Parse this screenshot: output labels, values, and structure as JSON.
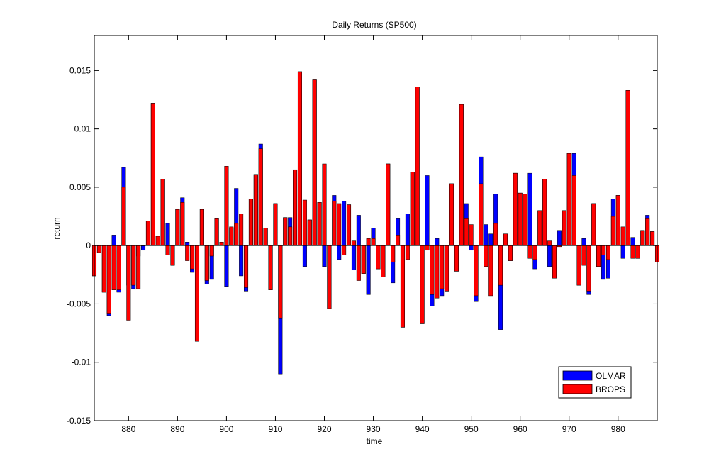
{
  "chart_data": {
    "type": "bar",
    "title": "Daily Returns (SP500)",
    "xlabel": "time",
    "ylabel": "return",
    "xlim": [
      873,
      988
    ],
    "ylim": [
      -0.015,
      0.018
    ],
    "xticks": [
      880,
      890,
      900,
      910,
      920,
      930,
      940,
      950,
      960,
      970,
      980
    ],
    "xtick_labels": [
      "880",
      "890",
      "900",
      "910",
      "920",
      "930",
      "940",
      "950",
      "960",
      "970",
      "980"
    ],
    "yticks": [
      -0.015,
      -0.01,
      -0.005,
      0,
      0.005,
      0.01,
      0.015
    ],
    "ytick_labels": [
      "-0.015",
      "-0.01",
      "-0.005",
      "0",
      "0.005",
      "0.01",
      "0.015"
    ],
    "grid": false,
    "legend_position": "lower-right",
    "x": [
      873,
      874,
      875,
      876,
      877,
      878,
      879,
      880,
      881,
      882,
      883,
      884,
      885,
      886,
      887,
      888,
      889,
      890,
      891,
      892,
      893,
      894,
      895,
      896,
      897,
      898,
      899,
      900,
      901,
      902,
      903,
      904,
      905,
      906,
      907,
      908,
      909,
      910,
      911,
      912,
      913,
      914,
      915,
      916,
      917,
      918,
      919,
      920,
      921,
      922,
      923,
      924,
      925,
      926,
      927,
      928,
      929,
      930,
      931,
      932,
      933,
      934,
      935,
      936,
      937,
      938,
      939,
      940,
      941,
      942,
      943,
      944,
      945,
      946,
      947,
      948,
      949,
      950,
      951,
      952,
      953,
      954,
      955,
      956,
      957,
      958,
      959,
      960,
      961,
      962,
      963,
      964,
      965,
      966,
      967,
      968,
      969,
      970,
      971,
      972,
      973,
      974,
      975,
      976,
      977,
      978,
      979,
      980,
      981,
      982,
      983,
      984,
      985,
      986,
      987,
      988
    ],
    "series": [
      {
        "name": "OLMAR",
        "color": "#0000ff",
        "values": [
          -0.0026,
          -0.0006,
          -0.004,
          -0.006,
          0.0009,
          -0.004,
          0.0067,
          -0.0034,
          -0.0037,
          -0.0009,
          -0.0004,
          0.0021,
          0.0122,
          0.0008,
          0.0057,
          0.0019,
          -0.0017,
          0.0031,
          0.0041,
          0.0003,
          -0.0023,
          -0.0082,
          0.0031,
          -0.0033,
          -0.0029,
          0.0023,
          0.0003,
          -0.0035,
          0.0015,
          0.0049,
          -0.0026,
          -0.0039,
          0.004,
          0.0061,
          0.0087,
          0.0015,
          -0.0038,
          0.0036,
          -0.011,
          0.0024,
          0.0024,
          0.0065,
          0.0149,
          -0.0018,
          0.0022,
          0.0142,
          0.0037,
          -0.0018,
          -0.0054,
          0.0043,
          -0.0012,
          0.0038,
          0.0035,
          -0.0021,
          0.0026,
          -0.0024,
          -0.0042,
          0.0015,
          -0.002,
          -0.0027,
          0.007,
          -0.0032,
          0.0023,
          -0.007,
          0.0027,
          0.0063,
          0.0136,
          -0.0067,
          0.006,
          -0.0052,
          0.0006,
          -0.0043,
          -0.0039,
          0.0053,
          -0.0022,
          0.0121,
          0.0036,
          -0.0004,
          -0.0048,
          0.0076,
          0.0018,
          0.001,
          0.0044,
          -0.0072,
          0.001,
          -0.0013,
          0.0062,
          0.0045,
          0.0044,
          0.0062,
          -0.002,
          0.003,
          0.0057,
          -0.0018,
          -0.0028,
          0.0013,
          0.003,
          0.0079,
          0.0079,
          -0.0034,
          0.0006,
          -0.0042,
          0.0036,
          -0.0018,
          -0.0029,
          -0.0028,
          0.004,
          0.0043,
          -0.0011,
          0.0133,
          0.0007,
          -0.0011,
          0.0013,
          0.0026,
          0.0012,
          -0.0014
        ]
      },
      {
        "name": "BROPS",
        "color": "#ff0000",
        "values": [
          -0.0026,
          -0.0006,
          -0.004,
          -0.0058,
          -0.0038,
          -0.0038,
          0.005,
          -0.0064,
          -0.0034,
          -0.0037,
          0.0,
          0.0021,
          0.0122,
          0.0008,
          0.0057,
          -0.0008,
          -0.0017,
          0.0031,
          0.0037,
          -0.0013,
          -0.002,
          -0.0082,
          0.0031,
          -0.003,
          -0.0009,
          0.0023,
          0.0003,
          0.0068,
          0.0016,
          0.0019,
          0.0027,
          -0.0036,
          0.004,
          0.0061,
          0.0083,
          0.0015,
          -0.0038,
          0.0036,
          -0.0062,
          0.0024,
          0.0016,
          0.0065,
          0.0149,
          0.0039,
          0.0022,
          0.0142,
          0.0037,
          0.007,
          -0.0054,
          0.0038,
          0.0036,
          -0.0008,
          0.0035,
          0.0004,
          -0.003,
          -0.0024,
          0.0006,
          0.0006,
          -0.002,
          -0.0027,
          0.007,
          -0.0014,
          0.0009,
          -0.007,
          -0.0012,
          0.0063,
          0.0136,
          -0.0067,
          -0.0004,
          -0.0042,
          -0.0045,
          -0.0037,
          -0.0039,
          0.0053,
          -0.0022,
          0.0121,
          0.0023,
          0.0018,
          -0.0043,
          0.0053,
          -0.0018,
          -0.0043,
          0.0019,
          -0.0034,
          0.001,
          -0.0013,
          0.0062,
          0.0045,
          0.0044,
          -0.0011,
          -0.0012,
          0.003,
          0.0057,
          0.0004,
          -0.0028,
          -0.0001,
          0.003,
          0.0079,
          0.006,
          -0.0034,
          -0.0017,
          -0.0039,
          0.0036,
          -0.0018,
          -0.0008,
          -0.0012,
          0.0025,
          0.0043,
          0.0016,
          0.0133,
          -0.0011,
          -0.0011,
          0.0013,
          0.0023,
          0.0012,
          -0.0014
        ]
      }
    ]
  }
}
